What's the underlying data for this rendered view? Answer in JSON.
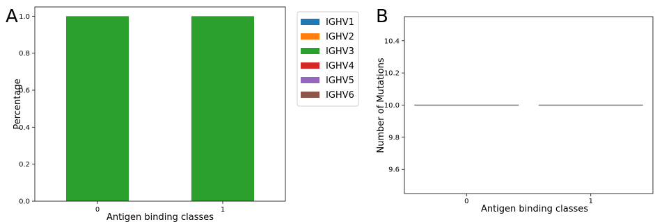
{
  "chart_data": [
    {
      "panel": "A",
      "type": "bar",
      "stacked": true,
      "categories": [
        "0",
        "1"
      ],
      "xlabel": "Antigen binding classes",
      "ylabel": "Percentage",
      "ylim": [
        0,
        1.05
      ],
      "yticks": [
        0.0,
        0.2,
        0.4,
        0.6,
        0.8,
        1.0
      ],
      "ytick_labels": [
        "0.0",
        "0.2",
        "0.4",
        "0.6",
        "0.8",
        "1.0"
      ],
      "grid": false,
      "legend": "outside-right",
      "series": [
        {
          "name": "IGHV1",
          "color": "#1f77b4",
          "values": [
            0,
            0
          ]
        },
        {
          "name": "IGHV2",
          "color": "#ff7f0e",
          "values": [
            0,
            0
          ]
        },
        {
          "name": "IGHV3",
          "color": "#2ca02c",
          "values": [
            1.0,
            1.0
          ]
        },
        {
          "name": "IGHV4",
          "color": "#d62728",
          "values": [
            0,
            0
          ]
        },
        {
          "name": "IGHV5",
          "color": "#9467bd",
          "values": [
            0,
            0
          ]
        },
        {
          "name": "IGHV6",
          "color": "#8c564b",
          "values": [
            0,
            0
          ]
        }
      ]
    },
    {
      "panel": "B",
      "type": "box",
      "categories": [
        "0",
        "1"
      ],
      "xlabel": "Antigen binding classes",
      "ylabel": "Number of Mutations",
      "ylim": [
        9.45,
        10.55
      ],
      "yticks": [
        9.6,
        9.8,
        10.0,
        10.2,
        10.4
      ],
      "ytick_labels": [
        "9.6",
        "9.8",
        "10.0",
        "10.2",
        "10.4"
      ],
      "grid": false,
      "values": [
        10.0,
        10.0
      ],
      "line_color": "#4d4d4d"
    }
  ]
}
